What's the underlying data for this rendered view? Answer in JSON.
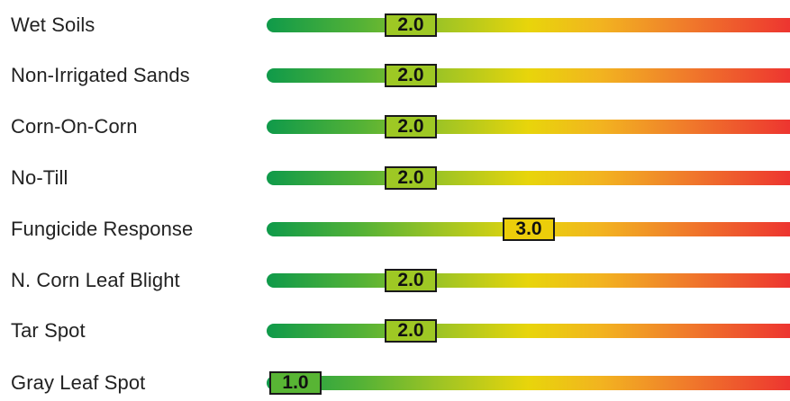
{
  "scale": {
    "min": 1,
    "max": 9
  },
  "colors": {
    "low": "#0f9a4a",
    "mid": "#e8d50b",
    "high": "#ed3530"
  },
  "ratings": [
    {
      "label": "Wet Soils",
      "value": 2.0,
      "value_text": "2.0"
    },
    {
      "label": "Non-Irrigated Sands",
      "value": 2.0,
      "value_text": "2.0"
    },
    {
      "label": "Corn-On-Corn",
      "value": 2.0,
      "value_text": "2.0"
    },
    {
      "label": "No-Till",
      "value": 2.0,
      "value_text": "2.0"
    },
    {
      "label": "Fungicide Response",
      "value": 3.0,
      "value_text": "3.0"
    },
    {
      "label": "N. Corn Leaf Blight",
      "value": 2.0,
      "value_text": "2.0"
    },
    {
      "label": "Tar Spot",
      "value": 2.0,
      "value_text": "2.0"
    },
    {
      "label": "Gray Leaf Spot",
      "value": 1.0,
      "value_text": "1.0"
    }
  ]
}
